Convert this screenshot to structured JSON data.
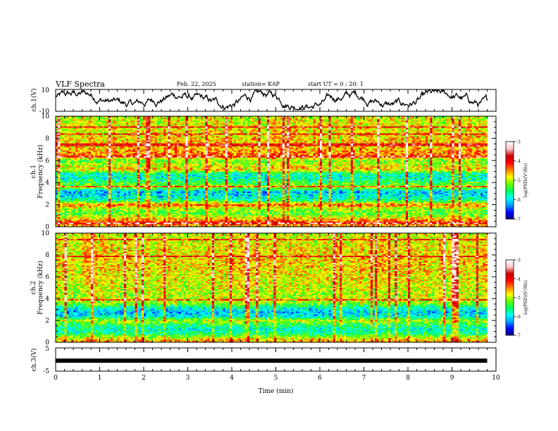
{
  "header": {
    "title": "VLF Spectra",
    "date": "Feb. 22, 2025",
    "station": "station= KAP",
    "start_ut": "start UT = 0 : 20: 1"
  },
  "chart_data": [
    {
      "type": "line",
      "panel": "ch1-waveform",
      "ylabel": "ch.1(V)",
      "ylim": [
        -10,
        10
      ],
      "yticks": [
        "10",
        "-10"
      ],
      "xlim": [
        0,
        10
      ],
      "x_end": 9.8,
      "series_shape": "noisy waveform, mostly between -8 and 9 V"
    },
    {
      "type": "heatmap",
      "panel": "ch1-spectrogram",
      "ylabel": "Frequency (kHz)",
      "channel_label": "ch.1",
      "ylim": [
        0,
        10
      ],
      "yticks": [
        "0",
        "2",
        "4",
        "6",
        "8",
        "10"
      ],
      "xlim": [
        0,
        10
      ],
      "x_end": 9.8,
      "colorbar": {
        "label": "log(PSD)(V²/Hz)",
        "range": [
          -7,
          -3
        ],
        "ticks": [
          "-3",
          "-4",
          "-5",
          "-6",
          "-7"
        ]
      },
      "profile": [
        {
          "f": 0.1,
          "v": -4.6
        },
        {
          "f": 0.4,
          "v": -4.2
        },
        {
          "f": 0.8,
          "v": -4.8
        },
        {
          "f": 1.2,
          "v": -5.3
        },
        {
          "f": 1.6,
          "v": -5.1
        },
        {
          "f": 2.0,
          "v": -4.4
        },
        {
          "f": 2.4,
          "v": -5.6
        },
        {
          "f": 2.8,
          "v": -5.9
        },
        {
          "f": 3.2,
          "v": -6.1
        },
        {
          "f": 3.6,
          "v": -5.0
        },
        {
          "f": 4.0,
          "v": -5.4
        },
        {
          "f": 4.4,
          "v": -5.8
        },
        {
          "f": 4.8,
          "v": -5.7
        },
        {
          "f": 5.2,
          "v": -4.7
        },
        {
          "f": 5.6,
          "v": -4.9
        },
        {
          "f": 6.0,
          "v": -5.2
        },
        {
          "f": 6.4,
          "v": -4.3
        },
        {
          "f": 7.0,
          "v": -4.6
        },
        {
          "f": 8.0,
          "v": -4.7
        },
        {
          "f": 9.0,
          "v": -4.8
        },
        {
          "f": 9.9,
          "v": -4.9
        }
      ]
    },
    {
      "type": "heatmap",
      "panel": "ch2-spectrogram",
      "ylabel": "Frequency (kHz)",
      "channel_label": "ch.2",
      "ylim": [
        0,
        10
      ],
      "yticks": [
        "0",
        "2",
        "4",
        "6",
        "8",
        "10"
      ],
      "xlim": [
        0,
        10
      ],
      "x_end": 9.8,
      "colorbar": {
        "label": "log(PSD)(V²/Hz)",
        "range": [
          -7,
          -3
        ],
        "ticks": [
          "-3",
          "-4",
          "-5",
          "-6",
          "-7"
        ]
      },
      "profile": [
        {
          "f": 0.1,
          "v": -4.5
        },
        {
          "f": 0.4,
          "v": -4.9
        },
        {
          "f": 0.8,
          "v": -5.6
        },
        {
          "f": 1.2,
          "v": -5.8
        },
        {
          "f": 1.6,
          "v": -5.5
        },
        {
          "f": 2.0,
          "v": -5.0
        },
        {
          "f": 2.4,
          "v": -5.9
        },
        {
          "f": 2.8,
          "v": -6.1
        },
        {
          "f": 3.2,
          "v": -5.7
        },
        {
          "f": 3.6,
          "v": -5.1
        },
        {
          "f": 4.0,
          "v": -4.9
        },
        {
          "f": 4.4,
          "v": -5.0
        },
        {
          "f": 5.0,
          "v": -4.9
        },
        {
          "f": 6.0,
          "v": -4.8
        },
        {
          "f": 7.0,
          "v": -4.7
        },
        {
          "f": 8.0,
          "v": -4.7
        },
        {
          "f": 9.0,
          "v": -4.8
        },
        {
          "f": 9.9,
          "v": -4.9
        }
      ]
    },
    {
      "type": "line",
      "panel": "ch3-waveform",
      "ylabel": "ch.3(V)",
      "ylim": [
        -5,
        5
      ],
      "yticks": [
        "5",
        "-5"
      ],
      "xlim": [
        0,
        10
      ],
      "x_end": 9.8,
      "level": -0.5
    }
  ],
  "xaxis": {
    "label": "Time (min)",
    "ticks": [
      "0",
      "1",
      "2",
      "3",
      "4",
      "5",
      "6",
      "7",
      "8",
      "9",
      "10"
    ]
  },
  "colormap": {
    "stops": [
      "#000080",
      "#0000ff",
      "#00a0ff",
      "#00ffff",
      "#00ff60",
      "#66ff00",
      "#ffff00",
      "#ff8000",
      "#ff0000",
      "#c80000",
      "#ffc8c8",
      "#ffffff"
    ]
  }
}
